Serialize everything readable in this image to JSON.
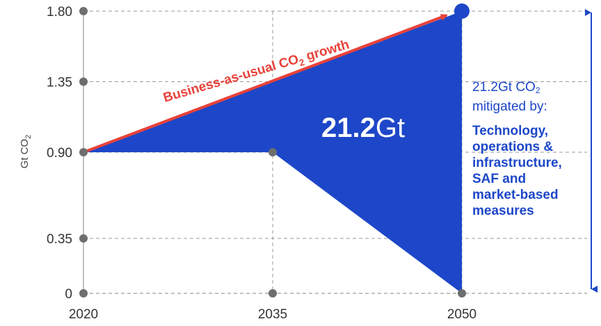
{
  "chart_data": {
    "type": "area",
    "ylabel": "Gt CO₂",
    "x_ticks": [
      "2020",
      "2035",
      "2050"
    ],
    "y_ticks": [
      "0",
      "0.35",
      "0.90",
      "1.35",
      "1.80"
    ],
    "ylim": [
      0,
      1.8
    ],
    "xlim": [
      2020,
      2050
    ],
    "grid": true,
    "series": [
      {
        "name": "Business-as-usual CO₂ growth",
        "x": [
          2020,
          2050
        ],
        "y": [
          0.9,
          1.8
        ]
      },
      {
        "x": [
          2020,
          2035,
          2050
        ],
        "y": [
          0.9,
          0.9,
          0
        ]
      }
    ],
    "area_label": {
      "value": "21.2",
      "unit": "Gt"
    },
    "bau_label": {
      "prefix": "Business-as-usual CO",
      "sub": "2",
      "suffix": " growth"
    },
    "ylabel_parts": {
      "main": "Gt CO",
      "sub": "2"
    },
    "colors": {
      "area": "#1d47c8",
      "bau_line": "#e8423a",
      "text_blue": "#1d47c8",
      "grid": "#9a9a9a",
      "tick_dot": "#6e6e6e"
    }
  },
  "side_note": {
    "head_prefix": "21.2Gt CO",
    "head_sub": "2",
    "head_line2": "mitigated by:",
    "body_lines": [
      "Technology,",
      "operations &",
      "infrastructure,",
      "SAF and",
      "market-based",
      "measures"
    ]
  }
}
